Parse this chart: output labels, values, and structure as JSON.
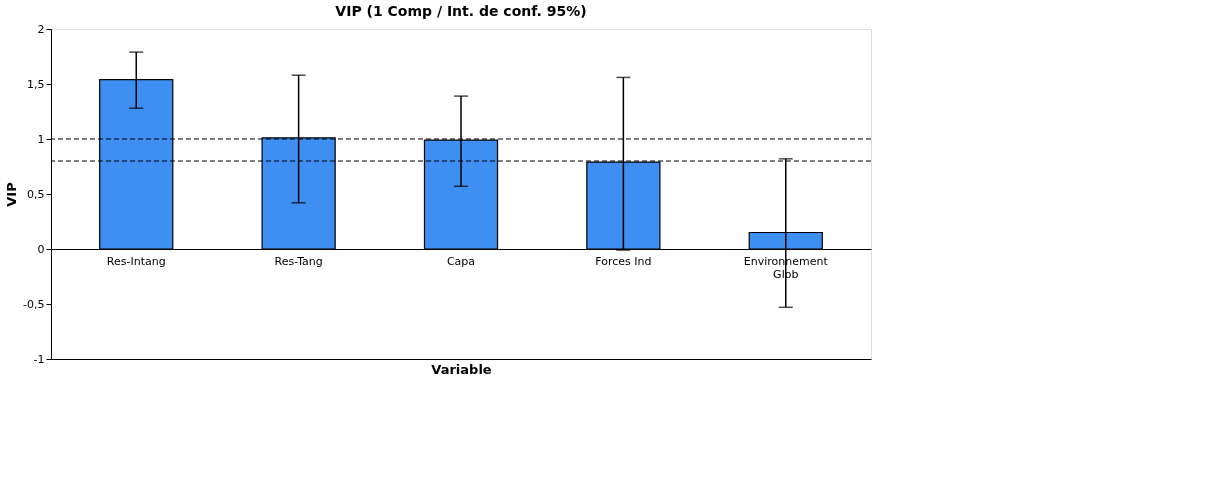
{
  "chart_data": {
    "type": "bar",
    "title": "VIP (1 Comp / Int. de conf. 95%)",
    "xlabel": "Variable",
    "ylabel": "VIP",
    "categories": [
      "Res-Intang",
      "Res-Tang",
      "Capa",
      "Forces Ind",
      "Environnement Glob"
    ],
    "series": [
      {
        "color": "#3f8ef2",
        "values": [
          1.54,
          1.01,
          0.99,
          0.79,
          0.15
        ],
        "errors": [
          [
            1.28,
            1.79
          ],
          [
            0.42,
            1.58
          ],
          [
            0.57,
            1.39
          ],
          [
            -0.01,
            1.56
          ],
          [
            -0.53,
            0.82
          ]
        ]
      }
    ],
    "ylim": [
      -1,
      2
    ],
    "yticks": [
      {
        "value": -1,
        "label": "-1"
      },
      {
        "value": -0.5,
        "label": "-0,5"
      },
      {
        "value": 0,
        "label": "0"
      },
      {
        "value": 0.5,
        "label": "0,5"
      },
      {
        "value": 1,
        "label": "1"
      },
      {
        "value": 1.5,
        "label": "1,5"
      },
      {
        "value": 2,
        "label": "2"
      }
    ],
    "ref_lines": [
      {
        "axis": "y",
        "value": 1,
        "line_style": "dashed"
      },
      {
        "axis": "y",
        "value": 0.8,
        "line_style": "dashed"
      }
    ],
    "grid": false
  }
}
